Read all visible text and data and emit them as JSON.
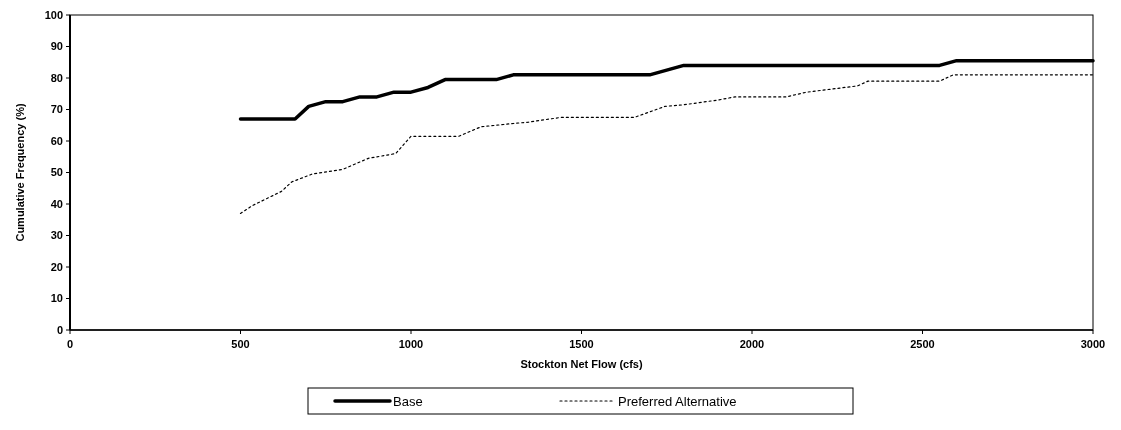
{
  "chart_data": {
    "type": "line",
    "xlabel": "Stockton Net Flow (cfs)",
    "ylabel": "Cumulative Frequency (%)",
    "xlim": [
      0,
      3000
    ],
    "ylim": [
      0,
      100
    ],
    "xticks": [
      0,
      500,
      1000,
      1500,
      2000,
      2500,
      3000
    ],
    "yticks": [
      0,
      10,
      20,
      30,
      40,
      50,
      60,
      70,
      80,
      90,
      100
    ],
    "legend": "bottom",
    "grid": false,
    "marker": "none",
    "series": [
      {
        "name": "Base",
        "color": "#000000",
        "line_style": "solid",
        "x": [
          500,
          660,
          700,
          750,
          800,
          850,
          900,
          950,
          1000,
          1050,
          1100,
          1250,
          1300,
          1700,
          1800,
          2550,
          2600,
          3000
        ],
        "values": [
          67,
          67,
          71,
          72.5,
          72.5,
          74,
          74,
          75.5,
          75.5,
          77,
          79.5,
          79.5,
          81,
          81,
          84,
          84,
          85.5,
          85.5
        ]
      },
      {
        "name": "Preferred Alternative",
        "color": "#000000",
        "line_style": "dotted",
        "x": [
          500,
          535,
          620,
          650,
          710,
          800,
          875,
          955,
          1000,
          1140,
          1205,
          1295,
          1345,
          1440,
          1655,
          1745,
          1800,
          1900,
          1950,
          2100,
          2160,
          2310,
          2340,
          2550,
          2590,
          3000
        ],
        "values": [
          37,
          39.5,
          44,
          47,
          49.5,
          51,
          54.5,
          56,
          61.5,
          61.5,
          64.5,
          65.5,
          66,
          67.5,
          67.5,
          71,
          71.5,
          73,
          74,
          74,
          75.5,
          77.5,
          79,
          79,
          81,
          81
        ]
      }
    ]
  }
}
